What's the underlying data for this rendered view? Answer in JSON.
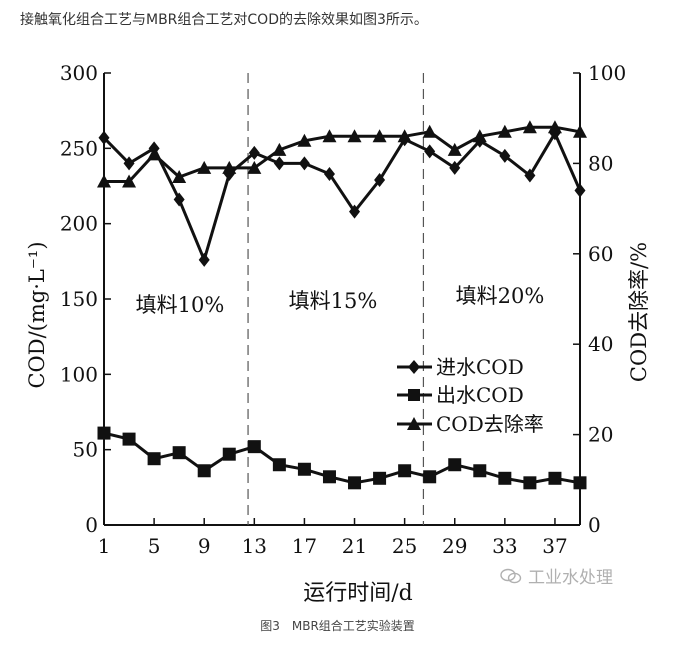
{
  "intro_text": "接触氧化组合工艺与MBR组合工艺对COD的去除效果如图3所示。",
  "caption": "图3　MBR组合工艺实验装置",
  "watermark": "工业水处理",
  "chart_data": {
    "type": "line",
    "xlabel": "运行时间/d",
    "ylabel_left": "COD/(mg·L⁻¹)",
    "ylabel_right": "COD去除率/%",
    "x_ticks": [
      1,
      5,
      9,
      13,
      17,
      21,
      25,
      29,
      33,
      37
    ],
    "x_tick_labels": [
      "1",
      "5",
      "9",
      "13",
      "17",
      "21",
      "25",
      "29",
      "33",
      "37"
    ],
    "xlim": [
      1,
      39
    ],
    "ylim_left": [
      0,
      300
    ],
    "ylim_right": [
      0,
      100
    ],
    "y_left_ticks": [
      0,
      50,
      100,
      150,
      200,
      250,
      300
    ],
    "y_right_ticks": [
      0,
      20,
      40,
      60,
      80,
      100
    ],
    "dividers": [
      12.5,
      26.5
    ],
    "region_labels": [
      "填料10%",
      "填料15%",
      "填料20%"
    ],
    "legend_position": "center-right",
    "series": [
      {
        "name": "进水COD",
        "marker": "diamond",
        "axis": "left",
        "points": [
          [
            1,
            257
          ],
          [
            3,
            240
          ],
          [
            5,
            250
          ],
          [
            7,
            216
          ],
          [
            9,
            176
          ],
          [
            11,
            233
          ],
          [
            13,
            247
          ],
          [
            15,
            240
          ],
          [
            17,
            240
          ],
          [
            19,
            233
          ],
          [
            21,
            208
          ],
          [
            23,
            229
          ],
          [
            25,
            256
          ],
          [
            27,
            248
          ],
          [
            29,
            237
          ],
          [
            31,
            255
          ],
          [
            33,
            245
          ],
          [
            35,
            232
          ],
          [
            37,
            260
          ],
          [
            39,
            222
          ]
        ]
      },
      {
        "name": "出水COD",
        "marker": "square",
        "axis": "left",
        "points": [
          [
            1,
            61
          ],
          [
            3,
            57
          ],
          [
            5,
            44
          ],
          [
            7,
            48
          ],
          [
            9,
            36
          ],
          [
            11,
            47
          ],
          [
            13,
            52
          ],
          [
            15,
            40
          ],
          [
            17,
            37
          ],
          [
            19,
            32
          ],
          [
            21,
            28
          ],
          [
            23,
            31
          ],
          [
            25,
            36
          ],
          [
            27,
            32
          ],
          [
            29,
            40
          ],
          [
            31,
            36
          ],
          [
            33,
            31
          ],
          [
            35,
            28
          ],
          [
            37,
            31
          ],
          [
            39,
            28
          ]
        ]
      },
      {
        "name": "COD去除率",
        "marker": "triangle",
        "axis": "right",
        "points": [
          [
            1,
            76
          ],
          [
            3,
            76
          ],
          [
            5,
            82
          ],
          [
            7,
            77
          ],
          [
            9,
            79
          ],
          [
            11,
            79
          ],
          [
            13,
            79
          ],
          [
            15,
            83
          ],
          [
            17,
            85
          ],
          [
            19,
            86
          ],
          [
            21,
            86
          ],
          [
            23,
            86
          ],
          [
            25,
            86
          ],
          [
            27,
            87
          ],
          [
            29,
            83
          ],
          [
            31,
            86
          ],
          [
            33,
            87
          ],
          [
            35,
            88
          ],
          [
            37,
            88
          ],
          [
            39,
            87
          ]
        ]
      }
    ]
  }
}
